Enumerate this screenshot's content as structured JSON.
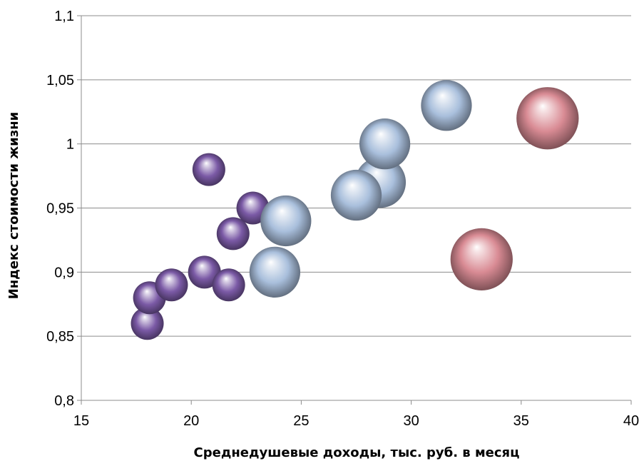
{
  "chart_data": {
    "type": "bubble",
    "title": "",
    "xlabel": "Среднедушевые доходы, тыс. руб. в месяц",
    "ylabel": "Индекс стоимости жизни",
    "xlim": [
      15,
      40
    ],
    "ylim": [
      0.8,
      1.1
    ],
    "x_ticks": [
      "15",
      "20",
      "25",
      "30",
      "35",
      "40"
    ],
    "y_ticks": [
      "0,8",
      "0,85",
      "0,9",
      "0,95",
      "1",
      "1,05",
      "1,1"
    ],
    "grid": "horizontal",
    "legend": "none",
    "series": [
      {
        "color": "#7b5aa6",
        "points": [
          {
            "x": 18.0,
            "y": 0.86,
            "size": 1
          },
          {
            "x": 18.1,
            "y": 0.88,
            "size": 1
          },
          {
            "x": 19.1,
            "y": 0.89,
            "size": 1
          },
          {
            "x": 20.6,
            "y": 0.9,
            "size": 1
          },
          {
            "x": 21.7,
            "y": 0.89,
            "size": 1
          },
          {
            "x": 21.9,
            "y": 0.93,
            "size": 1
          },
          {
            "x": 22.8,
            "y": 0.95,
            "size": 1
          },
          {
            "x": 20.8,
            "y": 0.98,
            "size": 1
          }
        ]
      },
      {
        "color": "#a9bfdc",
        "points": [
          {
            "x": 24.3,
            "y": 0.94,
            "size": 2.4
          },
          {
            "x": 23.8,
            "y": 0.9,
            "size": 2.4
          },
          {
            "x": 28.6,
            "y": 0.97,
            "size": 2.4
          },
          {
            "x": 27.5,
            "y": 0.96,
            "size": 2.4
          },
          {
            "x": 28.8,
            "y": 1.0,
            "size": 2.4
          },
          {
            "x": 31.6,
            "y": 1.03,
            "size": 2.4
          }
        ]
      },
      {
        "color": "#d98b94",
        "points": [
          {
            "x": 36.2,
            "y": 1.02,
            "size": 3.6
          },
          {
            "x": 33.2,
            "y": 0.91,
            "size": 3.6
          }
        ]
      }
    ]
  }
}
